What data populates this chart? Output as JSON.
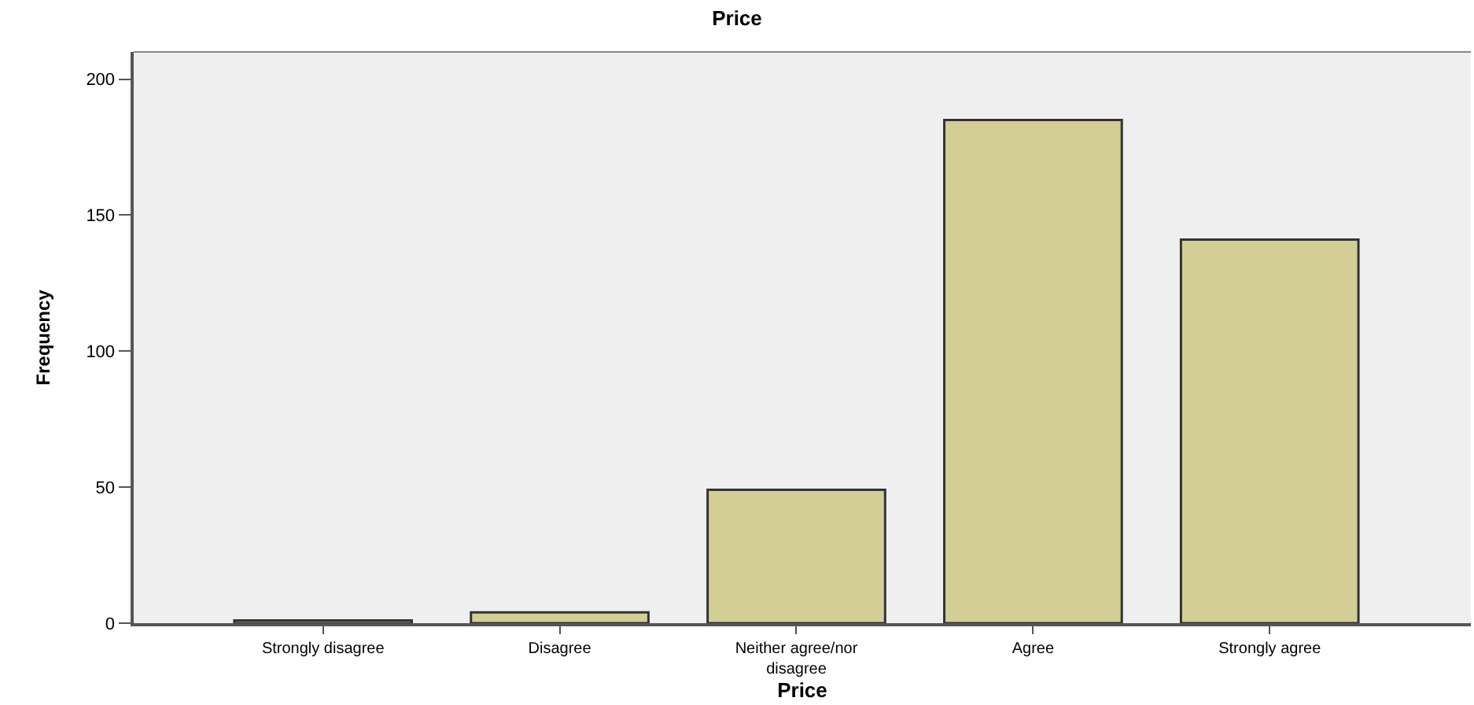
{
  "chart_data": {
    "type": "bar",
    "title": "Price",
    "xlabel": "Price",
    "ylabel": "Frequency",
    "categories": [
      "Strongly disagree",
      "Disagree",
      "Neither agree/nor\ndisagree",
      "Agree",
      "Strongly agree"
    ],
    "values": [
      1,
      4,
      49,
      185,
      141
    ],
    "color": "#d3cd96",
    "ylim": [
      0,
      210
    ],
    "yticks": [
      0,
      50,
      100,
      150,
      200
    ],
    "grid": false
  }
}
